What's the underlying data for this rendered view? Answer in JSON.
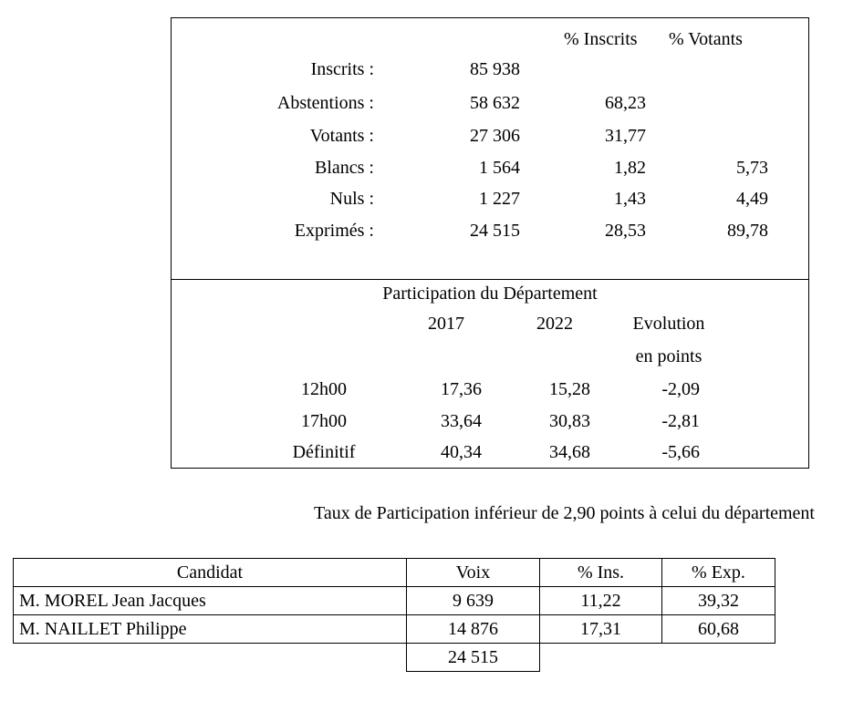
{
  "results": {
    "headers": [
      "% Inscrits",
      "% Votants"
    ],
    "rows": [
      {
        "label": "Inscrits :",
        "value": "85 938",
        "pct_inscrits": "",
        "pct_votants": ""
      },
      {
        "label": "Abstentions :",
        "value": "58 632",
        "pct_inscrits": "68,23",
        "pct_votants": ""
      },
      {
        "label": "Votants :",
        "value": "27 306",
        "pct_inscrits": "31,77",
        "pct_votants": ""
      },
      {
        "label": "Blancs :",
        "value": "1 564",
        "pct_inscrits": "1,82",
        "pct_votants": "5,73"
      },
      {
        "label": "Nuls :",
        "value": "1 227",
        "pct_inscrits": "1,43",
        "pct_votants": "4,49"
      },
      {
        "label": "Exprimés :",
        "value": "24 515",
        "pct_inscrits": "28,53",
        "pct_votants": "89,78"
      }
    ]
  },
  "participation": {
    "title": "Participation du Département",
    "headers": [
      "2017",
      "2022",
      "Evolution",
      "en points"
    ],
    "rows": [
      {
        "label": "12h00",
        "y2017": "17,36",
        "y2022": "15,28",
        "evolution": "-2,09"
      },
      {
        "label": "17h00",
        "y2017": "33,64",
        "y2022": "30,83",
        "evolution": "-2,81"
      },
      {
        "label": "Définitif",
        "y2017": "40,34",
        "y2022": "34,68",
        "evolution": "-5,66"
      }
    ]
  },
  "note": "Taux de Participation inférieur de 2,90 points à celui du département",
  "candidates": {
    "headers": [
      "Candidat",
      "Voix",
      "% Ins.",
      "% Exp."
    ],
    "rows": [
      {
        "name": "M. MOREL Jean Jacques",
        "voix": "9 639",
        "pct_ins": "11,22",
        "pct_exp": "39,32"
      },
      {
        "name": "M. NAILLET Philippe",
        "voix": "14 876",
        "pct_ins": "17,31",
        "pct_exp": "60,68"
      }
    ],
    "total": "24 515"
  }
}
